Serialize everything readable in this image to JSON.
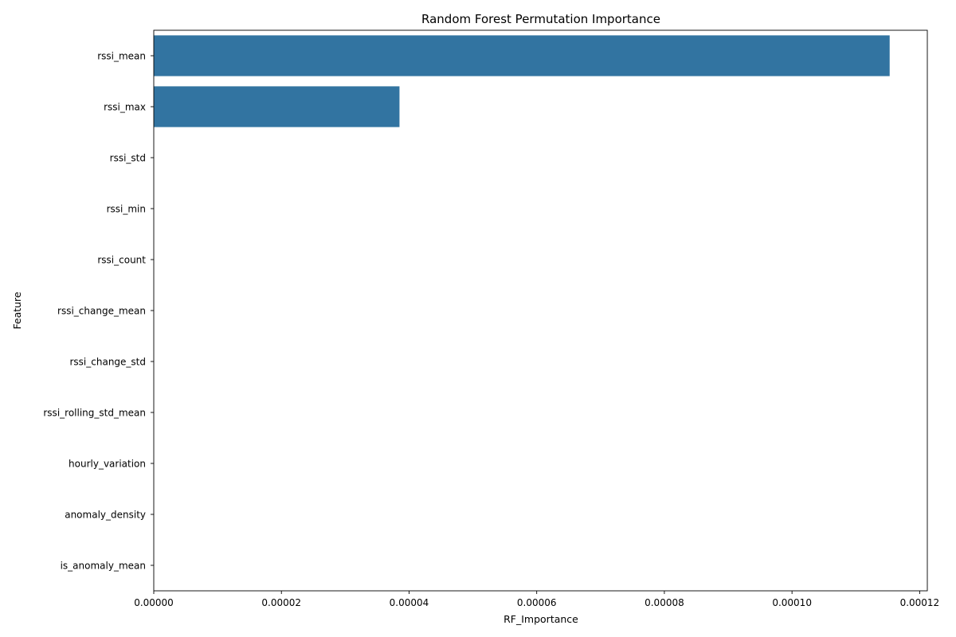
{
  "chart_data": {
    "type": "bar",
    "orientation": "horizontal",
    "title": "Random Forest Permutation Importance",
    "xlabel": "RF_Importance",
    "ylabel": "Feature",
    "categories": [
      "rssi_mean",
      "rssi_max",
      "rssi_std",
      "rssi_min",
      "rssi_count",
      "rssi_change_mean",
      "rssi_change_std",
      "rssi_rolling_std_mean",
      "hourly_variation",
      "anomaly_density",
      "is_anomaly_mean"
    ],
    "values": [
      0.0001153,
      3.85e-05,
      0,
      0,
      0,
      0,
      0,
      0,
      0,
      0,
      0
    ],
    "xlim": [
      0,
      0.0001212
    ],
    "xticks": [
      0,
      2e-05,
      4e-05,
      6e-05,
      8e-05,
      0.0001,
      0.00012
    ],
    "xtick_labels": [
      "0.00000",
      "0.00002",
      "0.00004",
      "0.00006",
      "0.00008",
      "0.00010",
      "0.00012"
    ],
    "bar_color": "#3274a1",
    "grid": false
  }
}
